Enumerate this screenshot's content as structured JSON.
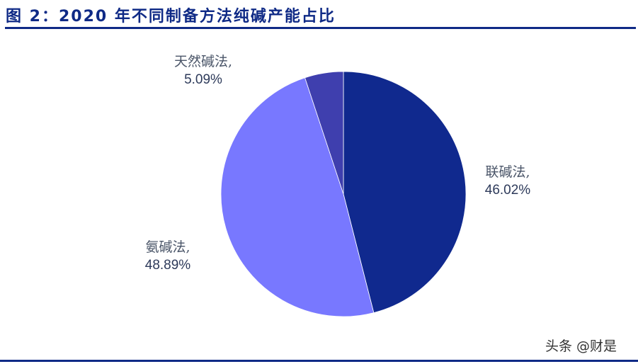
{
  "header": {
    "title": "图 2：2020 年不同制备方法纯碱产能占比"
  },
  "chart_data": {
    "type": "pie",
    "title": "2020 年不同制备方法纯碱产能占比",
    "categories": [
      "联碱法",
      "氨碱法",
      "天然碱法"
    ],
    "values": [
      46.02,
      48.89,
      5.09
    ],
    "colors": [
      "#10298e",
      "#7878ff",
      "#3f3fae"
    ],
    "start_angle": "12 o'clock, clockwise",
    "labels": [
      {
        "name": "联碱法,",
        "pct": "46.02%"
      },
      {
        "name": "氨碱法,",
        "pct": "48.89%"
      },
      {
        "name": "天然碱法,",
        "pct": "5.09%"
      }
    ],
    "legend": "none (data labels outside slices)"
  },
  "watermark": "头条 @财是"
}
